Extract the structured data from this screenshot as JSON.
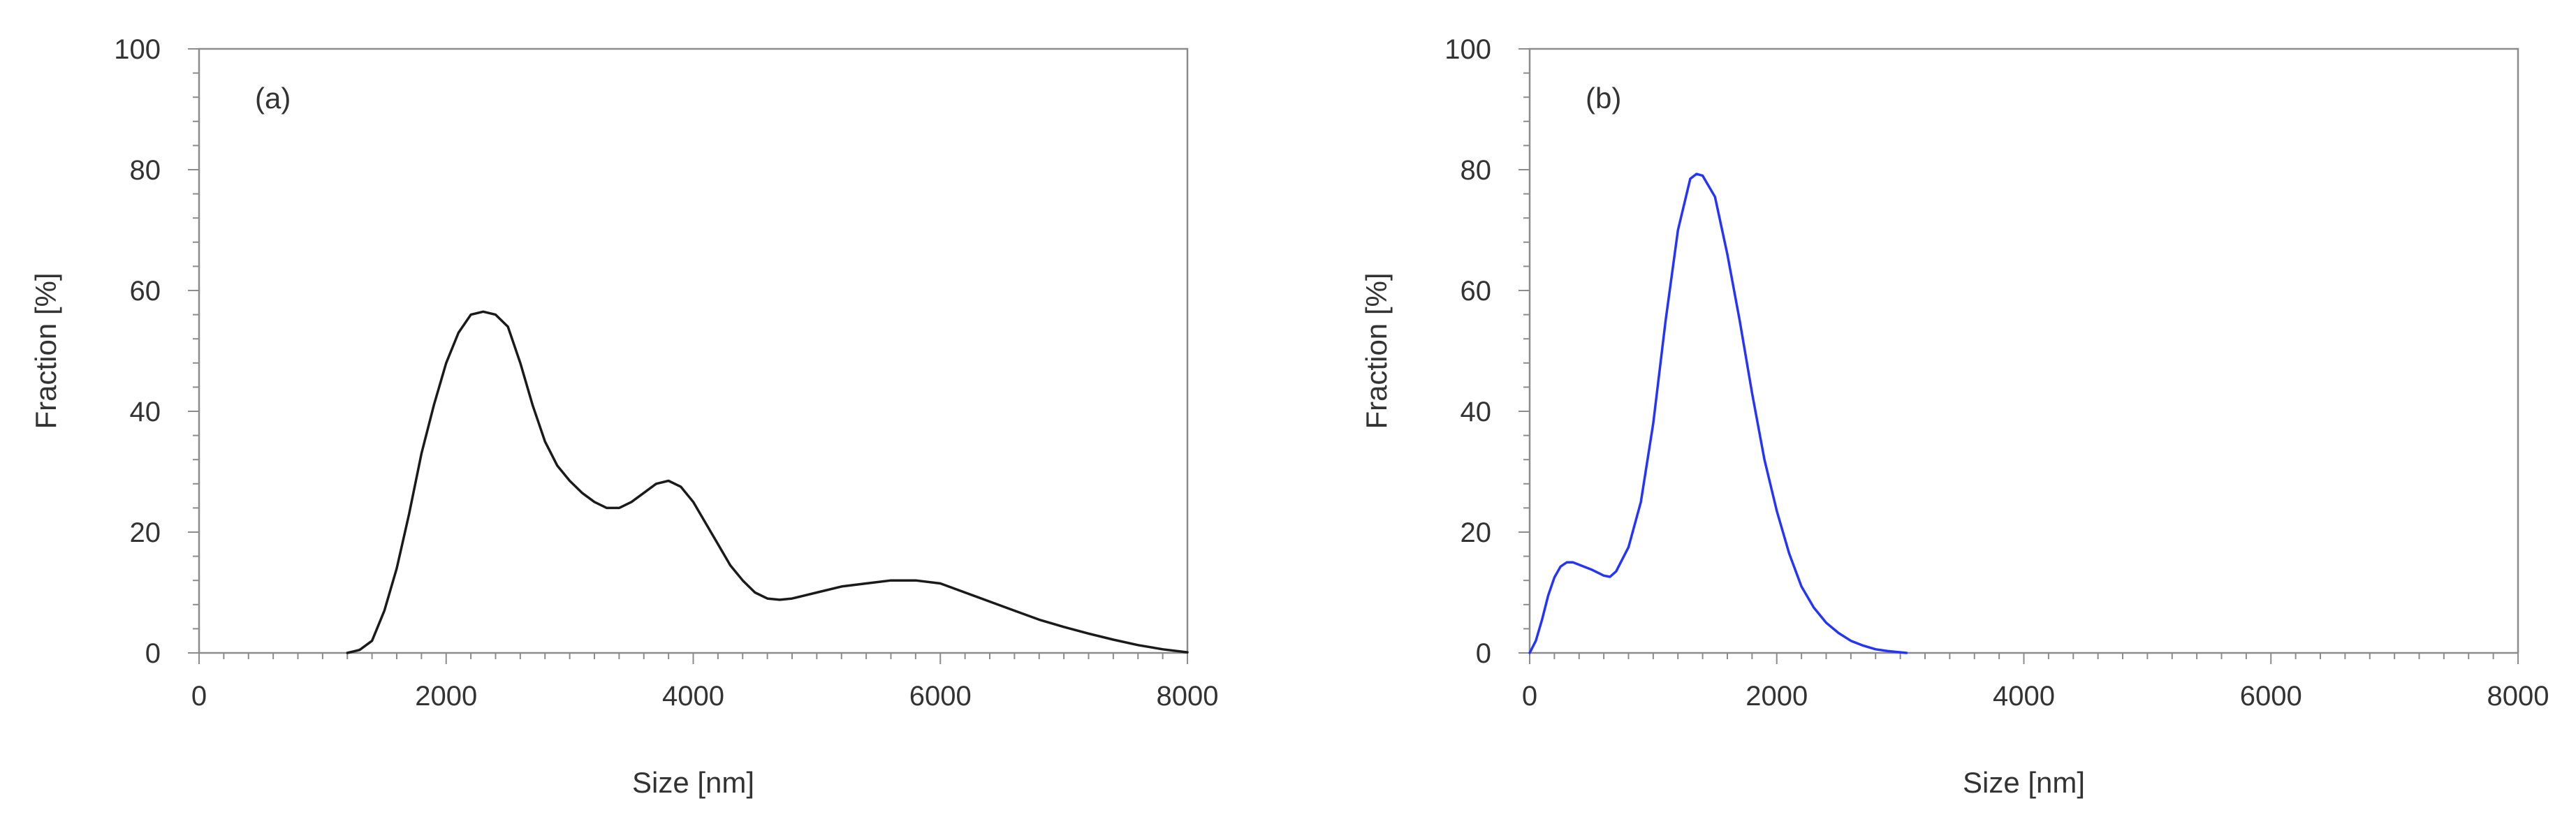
{
  "chart_data": [
    {
      "type": "line",
      "panel_label": "(a)",
      "xlabel": "Size [nm]",
      "ylabel": "Fraction [%]",
      "xlim": [
        0,
        8000
      ],
      "ylim": [
        0,
        100
      ],
      "x_ticks": [
        0,
        2000,
        4000,
        6000,
        8000
      ],
      "y_ticks": [
        0,
        20,
        40,
        60,
        80,
        100
      ],
      "grid": false,
      "legend": "none",
      "series": [
        {
          "color": "#1a1a1a",
          "x": [
            1200,
            1300,
            1400,
            1500,
            1600,
            1700,
            1800,
            1900,
            2000,
            2100,
            2200,
            2300,
            2400,
            2500,
            2600,
            2700,
            2800,
            2900,
            3000,
            3100,
            3200,
            3300,
            3400,
            3500,
            3600,
            3700,
            3800,
            3900,
            4000,
            4100,
            4200,
            4300,
            4400,
            4500,
            4600,
            4700,
            4800,
            4900,
            5000,
            5200,
            5400,
            5600,
            5800,
            6000,
            6200,
            6400,
            6600,
            6800,
            7000,
            7200,
            7400,
            7600,
            7800,
            8000
          ],
          "y": [
            0,
            0.5,
            2,
            7,
            14,
            23,
            33,
            41,
            48,
            53,
            56,
            56.5,
            56,
            54,
            48,
            41,
            35,
            31,
            28.5,
            26.5,
            25,
            24,
            24,
            25,
            26.5,
            28,
            28.5,
            27.5,
            25,
            21.5,
            18,
            14.5,
            12,
            10,
            9,
            8.8,
            9,
            9.5,
            10,
            11,
            11.5,
            12,
            12,
            11.5,
            10,
            8.5,
            7,
            5.5,
            4.3,
            3.2,
            2.2,
            1.3,
            0.6,
            0.1
          ]
        }
      ]
    },
    {
      "type": "line",
      "panel_label": "(b)",
      "xlabel": "Size [nm]",
      "ylabel": "Fraction [%]",
      "xlim": [
        0,
        8000
      ],
      "ylim": [
        0,
        100
      ],
      "x_ticks": [
        0,
        2000,
        4000,
        6000,
        8000
      ],
      "y_ticks": [
        0,
        20,
        40,
        60,
        80,
        100
      ],
      "grid": false,
      "legend": "none",
      "series": [
        {
          "color": "#2433ff",
          "x": [
            0,
            50,
            100,
            150,
            200,
            250,
            300,
            350,
            400,
            500,
            600,
            650,
            700,
            800,
            900,
            1000,
            1100,
            1200,
            1300,
            1350,
            1400,
            1500,
            1600,
            1700,
            1800,
            1900,
            2000,
            2100,
            2200,
            2300,
            2400,
            2500,
            2600,
            2700,
            2800,
            2900,
            3000,
            3050
          ],
          "y": [
            0,
            2,
            5.5,
            9.5,
            12.5,
            14.3,
            15,
            15,
            14.6,
            13.8,
            12.8,
            12.6,
            13.5,
            17.5,
            25,
            38,
            55,
            70,
            78.5,
            79.3,
            79,
            75.5,
            66,
            55,
            43,
            32,
            23.5,
            16.5,
            11,
            7.5,
            5,
            3.3,
            2,
            1.2,
            0.6,
            0.3,
            0.1,
            0
          ]
        }
      ]
    }
  ]
}
